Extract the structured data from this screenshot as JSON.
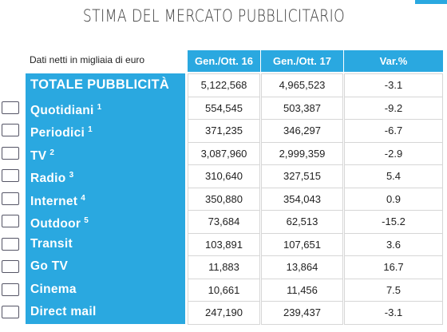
{
  "header": {
    "title": "STIMA DEL MERCATO PUBBLICITARIO"
  },
  "table": {
    "caption": "Dati netti in migliaia di euro",
    "columns": [
      "Gen./Ott. 16",
      "Gen./Ott. 17",
      "Var.%"
    ],
    "rows": [
      {
        "label": "TOTALE PUBBLICITÀ",
        "values": [
          "5,122,568",
          "4,965,523",
          "-3.1"
        ]
      },
      {
        "label": "Quotidiani",
        "note": "1",
        "values": [
          "554,545",
          "503,387",
          "-9.2"
        ]
      },
      {
        "label": "Periodici",
        "note": "1",
        "values": [
          "371,235",
          "346,297",
          "-6.7"
        ]
      },
      {
        "label": "TV",
        "note": "2",
        "values": [
          "3,087,960",
          "2,999,359",
          "-2.9"
        ]
      },
      {
        "label": "Radio",
        "note": "3",
        "values": [
          "310,640",
          "327,515",
          "5.4"
        ]
      },
      {
        "label": "Internet",
        "note": "4",
        "values": [
          "350,880",
          "354,043",
          "0.9"
        ]
      },
      {
        "label": "Outdoor",
        "note": "5",
        "values": [
          "73,684",
          "62,513",
          "-15.2"
        ]
      },
      {
        "label": "Transit",
        "values": [
          "103,891",
          "107,651",
          "3.6"
        ]
      },
      {
        "label": "Go TV",
        "values": [
          "11,883",
          "13,864",
          "16.7"
        ]
      },
      {
        "label": "Cinema",
        "values": [
          "10,661",
          "11,456",
          "7.5"
        ]
      },
      {
        "label": "Direct mail",
        "values": [
          "247,190",
          "239,437",
          "-3.1"
        ]
      }
    ]
  }
}
